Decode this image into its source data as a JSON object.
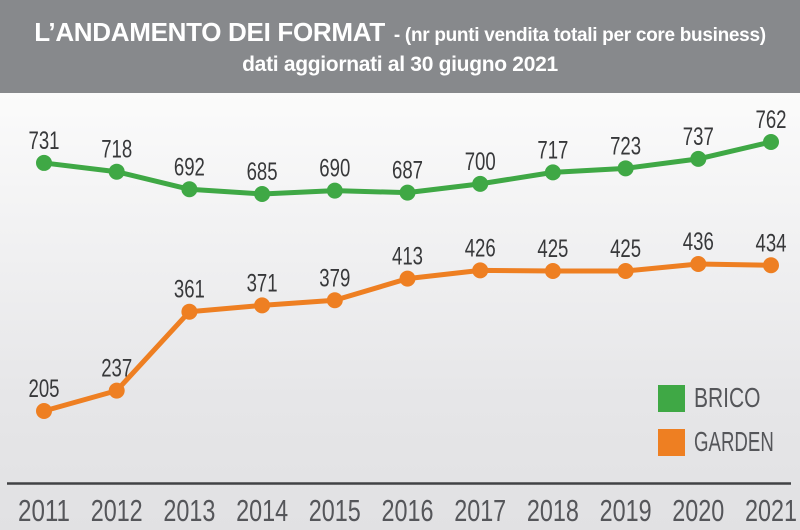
{
  "header": {
    "title_main": "L’ANDAMENTO DEI FORMAT",
    "title_detail": "- (nr punti vendita totali per core business)",
    "subtitle": "dati aggiornati al 30 giugno 2021",
    "bg_color": "#87898c",
    "text_color": "#ffffff"
  },
  "chart_data": {
    "type": "line",
    "title": "L’ANDAMENTO DEI FORMAT - (nr punti vendita totali per core business)",
    "subtitle": "dati aggiornati al 30 giugno 2021",
    "categories": [
      "2011",
      "2012",
      "2013",
      "2014",
      "2015",
      "2016",
      "2017",
      "2018",
      "2019",
      "2020",
      "2021"
    ],
    "series": [
      {
        "name": "BRICO",
        "color": "#3fa845",
        "values": [
          731,
          718,
          692,
          685,
          690,
          687,
          700,
          717,
          723,
          737,
          762
        ]
      },
      {
        "name": "GARDEN",
        "color": "#ee7f22",
        "values": [
          205,
          237,
          361,
          371,
          379,
          413,
          426,
          425,
          425,
          436,
          434
        ]
      }
    ],
    "data_labels": true,
    "grid": false,
    "y_axis_visible": false,
    "x_axis_line": true,
    "legend": {
      "position": "bottom-right",
      "entries": [
        "BRICO",
        "GARDEN"
      ]
    },
    "axis_label_color": "#55565a",
    "data_label_color": "#37383a",
    "axis_line_color": "#414245"
  }
}
